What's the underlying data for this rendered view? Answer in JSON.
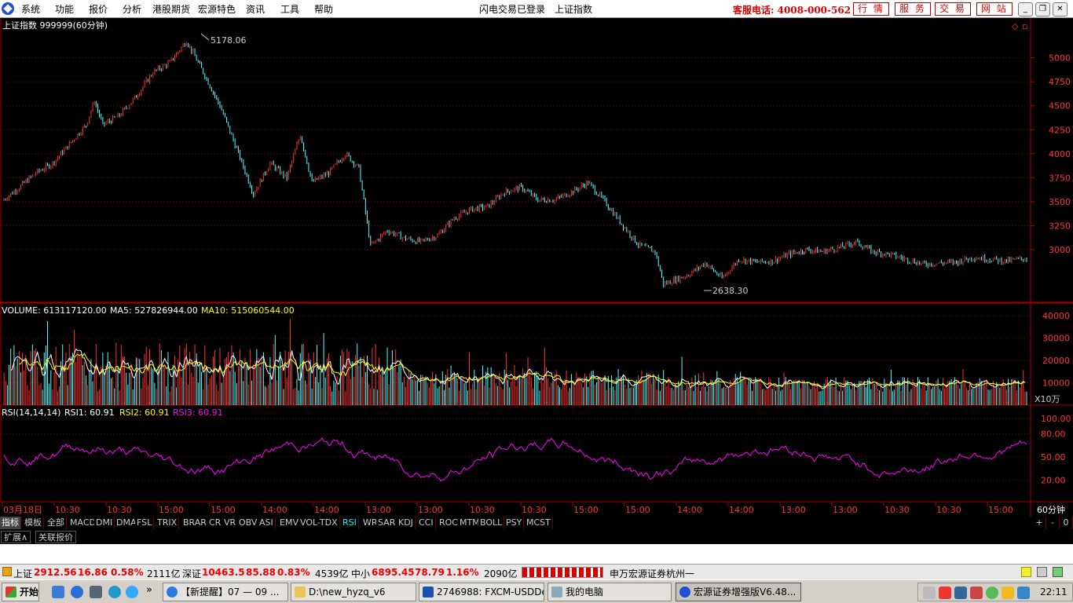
{
  "menu": {
    "items": [
      "系统",
      "功能",
      "报价",
      "分析",
      "港股期货",
      "宏源特色",
      "资讯",
      "工具",
      "帮助"
    ],
    "center1": "闪电交易已登录",
    "center2": "上证指数",
    "hotline": "客服电话: 4008-000-562",
    "buttons": [
      "行 情",
      "服 务",
      "交 易",
      "网 站"
    ]
  },
  "chart": {
    "title": "上证指数 999999(60分钟)",
    "high_label": "5178.06",
    "low_label": "2638.30",
    "price_ticks": [
      "5000",
      "4750",
      "4500",
      "4250",
      "4000",
      "3750",
      "3500",
      "3250",
      "3000"
    ],
    "volume_legend": {
      "vol": "VOLUME: 613117120.00",
      "ma5": "MA5: 527826944.00",
      "ma10": "MA10: 515060544.00"
    },
    "volume_ticks": [
      "40000",
      "30000",
      "20000",
      "10000"
    ],
    "volume_unit": "X10万",
    "rsi_legend": {
      "params": "RSI(14,14,14)",
      "rsi1": "RSI1: 60.91",
      "rsi2": "RSI2: 60.91",
      "rsi3": "RSI3: 60.91"
    },
    "rsi_ticks": [
      "100.00",
      "80.00",
      "50.00",
      "20.00"
    ],
    "time_labels": [
      "03月18日",
      "10:30",
      "10:30",
      "15:00",
      "15:00",
      "14:00",
      "14:00",
      "13:00",
      "13:00",
      "10:30",
      "10:30",
      "15:00",
      "15:00",
      "14:00",
      "14:00",
      "13:00",
      "13:00",
      "10:30",
      "10:30",
      "15:00"
    ],
    "period": "60分钟",
    "colors": {
      "up": "#ff3232",
      "down": "#54ffff",
      "ma5": "#ffffff",
      "ma10": "#ffff00",
      "rsi": "#ff00ff",
      "grid": "#800000"
    }
  },
  "chart_data": {
    "type": "line",
    "title": "上证指数 999999(60分钟)",
    "series": [
      {
        "name": "上证指数",
        "points": [
          [
            0,
            3510
          ],
          [
            10,
            3650
          ],
          [
            20,
            3800
          ],
          [
            30,
            3900
          ],
          [
            40,
            4100
          ],
          [
            50,
            4300
          ],
          [
            55,
            4550
          ],
          [
            60,
            4300
          ],
          [
            70,
            4400
          ],
          [
            80,
            4600
          ],
          [
            90,
            4850
          ],
          [
            100,
            4950
          ],
          [
            110,
            5178
          ],
          [
            120,
            4850
          ],
          [
            130,
            4500
          ],
          [
            140,
            4050
          ],
          [
            150,
            3580
          ],
          [
            160,
            3900
          ],
          [
            170,
            3750
          ],
          [
            178,
            4200
          ],
          [
            185,
            3700
          ],
          [
            195,
            3800
          ],
          [
            205,
            4000
          ],
          [
            213,
            3850
          ],
          [
            220,
            3040
          ],
          [
            230,
            3200
          ],
          [
            240,
            3120
          ],
          [
            250,
            3080
          ],
          [
            260,
            3150
          ],
          [
            270,
            3330
          ],
          [
            280,
            3420
          ],
          [
            290,
            3450
          ],
          [
            300,
            3600
          ],
          [
            310,
            3650
          ],
          [
            320,
            3520
          ],
          [
            330,
            3520
          ],
          [
            340,
            3600
          ],
          [
            350,
            3700
          ],
          [
            360,
            3500
          ],
          [
            370,
            3270
          ],
          [
            380,
            3050
          ],
          [
            390,
            2980
          ],
          [
            395,
            2638
          ],
          [
            410,
            2740
          ],
          [
            420,
            2860
          ],
          [
            430,
            2700
          ],
          [
            440,
            2900
          ],
          [
            450,
            2870
          ],
          [
            460,
            2880
          ],
          [
            470,
            2950
          ],
          [
            480,
            3000
          ],
          [
            490,
            2980
          ],
          [
            500,
            3020
          ],
          [
            510,
            3080
          ],
          [
            520,
            2980
          ],
          [
            530,
            2950
          ],
          [
            540,
            2900
          ],
          [
            550,
            2850
          ],
          [
            560,
            2860
          ],
          [
            570,
            2870
          ],
          [
            580,
            2920
          ],
          [
            590,
            2900
          ],
          [
            600,
            2880
          ],
          [
            612,
            2910
          ]
        ]
      }
    ],
    "ylim": [
      2500,
      5300
    ],
    "volume_ticks": [
      10000,
      20000,
      30000,
      40000
    ],
    "rsi_ticks": [
      20,
      50,
      80,
      100
    ]
  },
  "indicator_tabs": [
    "指标",
    "模板",
    "全部",
    "MACD",
    "DMI",
    "DMA",
    "FSL",
    "TRIX",
    "BRAR",
    "CR",
    "VR",
    "OBV",
    "ASI",
    "EMV",
    "VOL-TDX",
    "RSI",
    "WR",
    "SAR",
    "KDJ",
    "CCI",
    "ROC",
    "MTM",
    "BOLL",
    "PSY",
    "MCST"
  ],
  "right_tabs": [
    "+",
    "-",
    "0"
  ],
  "ext_tabs": [
    "扩展∧",
    "关联报价"
  ],
  "status": {
    "sh_name": "上证",
    "sh_val": "2912.56",
    "sh_chg": "16.86",
    "sh_pct": "0.58%",
    "sh_amt": "2111亿",
    "sz_name": "深证",
    "sz_val": "10463.5",
    "sz_chg": "85.88",
    "sz_pct": "0.83%",
    "sz_amt": "4539亿",
    "zx_name": "中小",
    "zx_val": "6895.45",
    "zx_chg": "78.79",
    "zx_pct": "1.16%",
    "zx_amt": "2090亿",
    "broker": "申万宏源证券杭州一"
  },
  "taskbar": {
    "start": "开始",
    "tasks": [
      "【新提醒】07 — 09 ...",
      "D:\\new_hyzq_v6",
      "2746988: FXCM-USDDe...",
      "我的电脑",
      "宏源证券增强版V6.48..."
    ],
    "clock": "22:11"
  }
}
